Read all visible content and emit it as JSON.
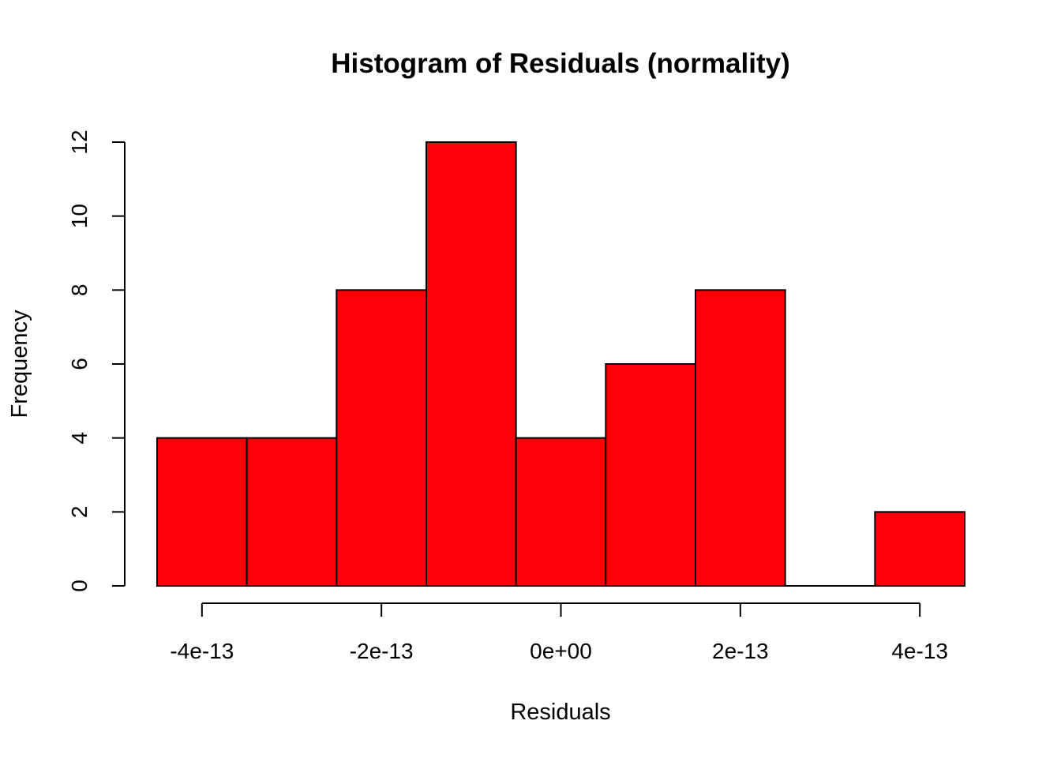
{
  "chart_data": {
    "type": "bar",
    "title": "Histogram of Residuals (normality)",
    "xlabel": "Residuals",
    "ylabel": "Frequency",
    "bin_edges": [
      -4.5e-13,
      -3.5e-13,
      -2.5e-13,
      -1.5e-13,
      -5e-14,
      5e-14,
      1.5e-13,
      2.5e-13,
      3.5e-13,
      4.5e-13
    ],
    "values": [
      4,
      4,
      8,
      12,
      4,
      6,
      8,
      0,
      2
    ],
    "xlim": [
      -4.5e-13,
      4.5e-13
    ],
    "ylim": [
      0,
      12
    ],
    "x_ticks": [
      -4e-13,
      -2e-13,
      0,
      2e-13,
      4e-13
    ],
    "x_tick_labels": [
      "-4e-13",
      "-2e-13",
      "0e+00",
      "2e-13",
      "4e-13"
    ],
    "y_ticks": [
      0,
      2,
      4,
      6,
      8,
      10,
      12
    ],
    "y_tick_labels": [
      "0",
      "2",
      "4",
      "6",
      "8",
      "10",
      "12"
    ],
    "bar_color": "#fb0007",
    "grid": false,
    "legend": "none"
  }
}
